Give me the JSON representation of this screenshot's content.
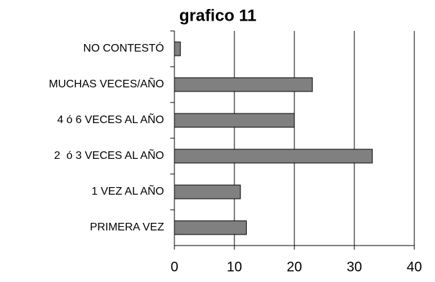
{
  "chart_data": {
    "type": "bar",
    "orientation": "horizontal",
    "title": "grafico 11",
    "categories": [
      "NO CONTESTÓ",
      "MUCHAS VECES/AÑO",
      "4 ó 6 VECES AL AÑO",
      "2  ó 3 VECES AL AÑO",
      "1 VEZ AL AÑO",
      "PRIMERA VEZ"
    ],
    "values": [
      1,
      23,
      20,
      33,
      11,
      12
    ],
    "color": "#808080",
    "xlim": [
      0,
      40
    ],
    "xticks": [
      0,
      10,
      20,
      30,
      40
    ],
    "grid": true
  }
}
